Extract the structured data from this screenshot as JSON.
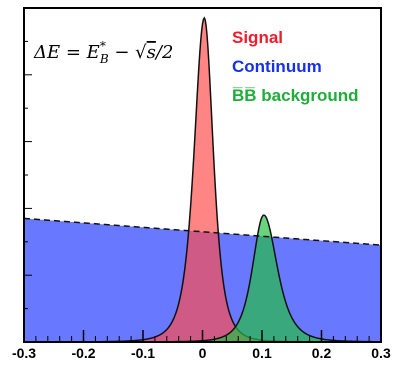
{
  "chart_data": {
    "type": "area",
    "formula": "ΔE = E*_B − √s/2",
    "xlim": [
      -0.3,
      0.3
    ],
    "ylim": [
      0,
      1.0
    ],
    "x_ticks": [
      "-0.3",
      "-0.2",
      "-0.1",
      "0",
      "0.1",
      "0.2",
      "0.3"
    ],
    "grid": false,
    "legend": "top-right",
    "series": [
      {
        "name": "Signal",
        "color": "#ff4b4b",
        "shape": "peak",
        "mean": 0.003,
        "sigma_left": 0.018,
        "sigma_right": 0.016,
        "height": 0.97
      },
      {
        "name": "Continuum",
        "color": "#2f45ff",
        "shape": "linear",
        "y_at_xmin": 0.37,
        "y_at_xmax": 0.29
      },
      {
        "name": "B̅B̅ background",
        "color": "#22c040",
        "shape": "peak",
        "mean": 0.103,
        "sigma_left": 0.02,
        "sigma_right": 0.024,
        "height": 0.38
      }
    ]
  }
}
